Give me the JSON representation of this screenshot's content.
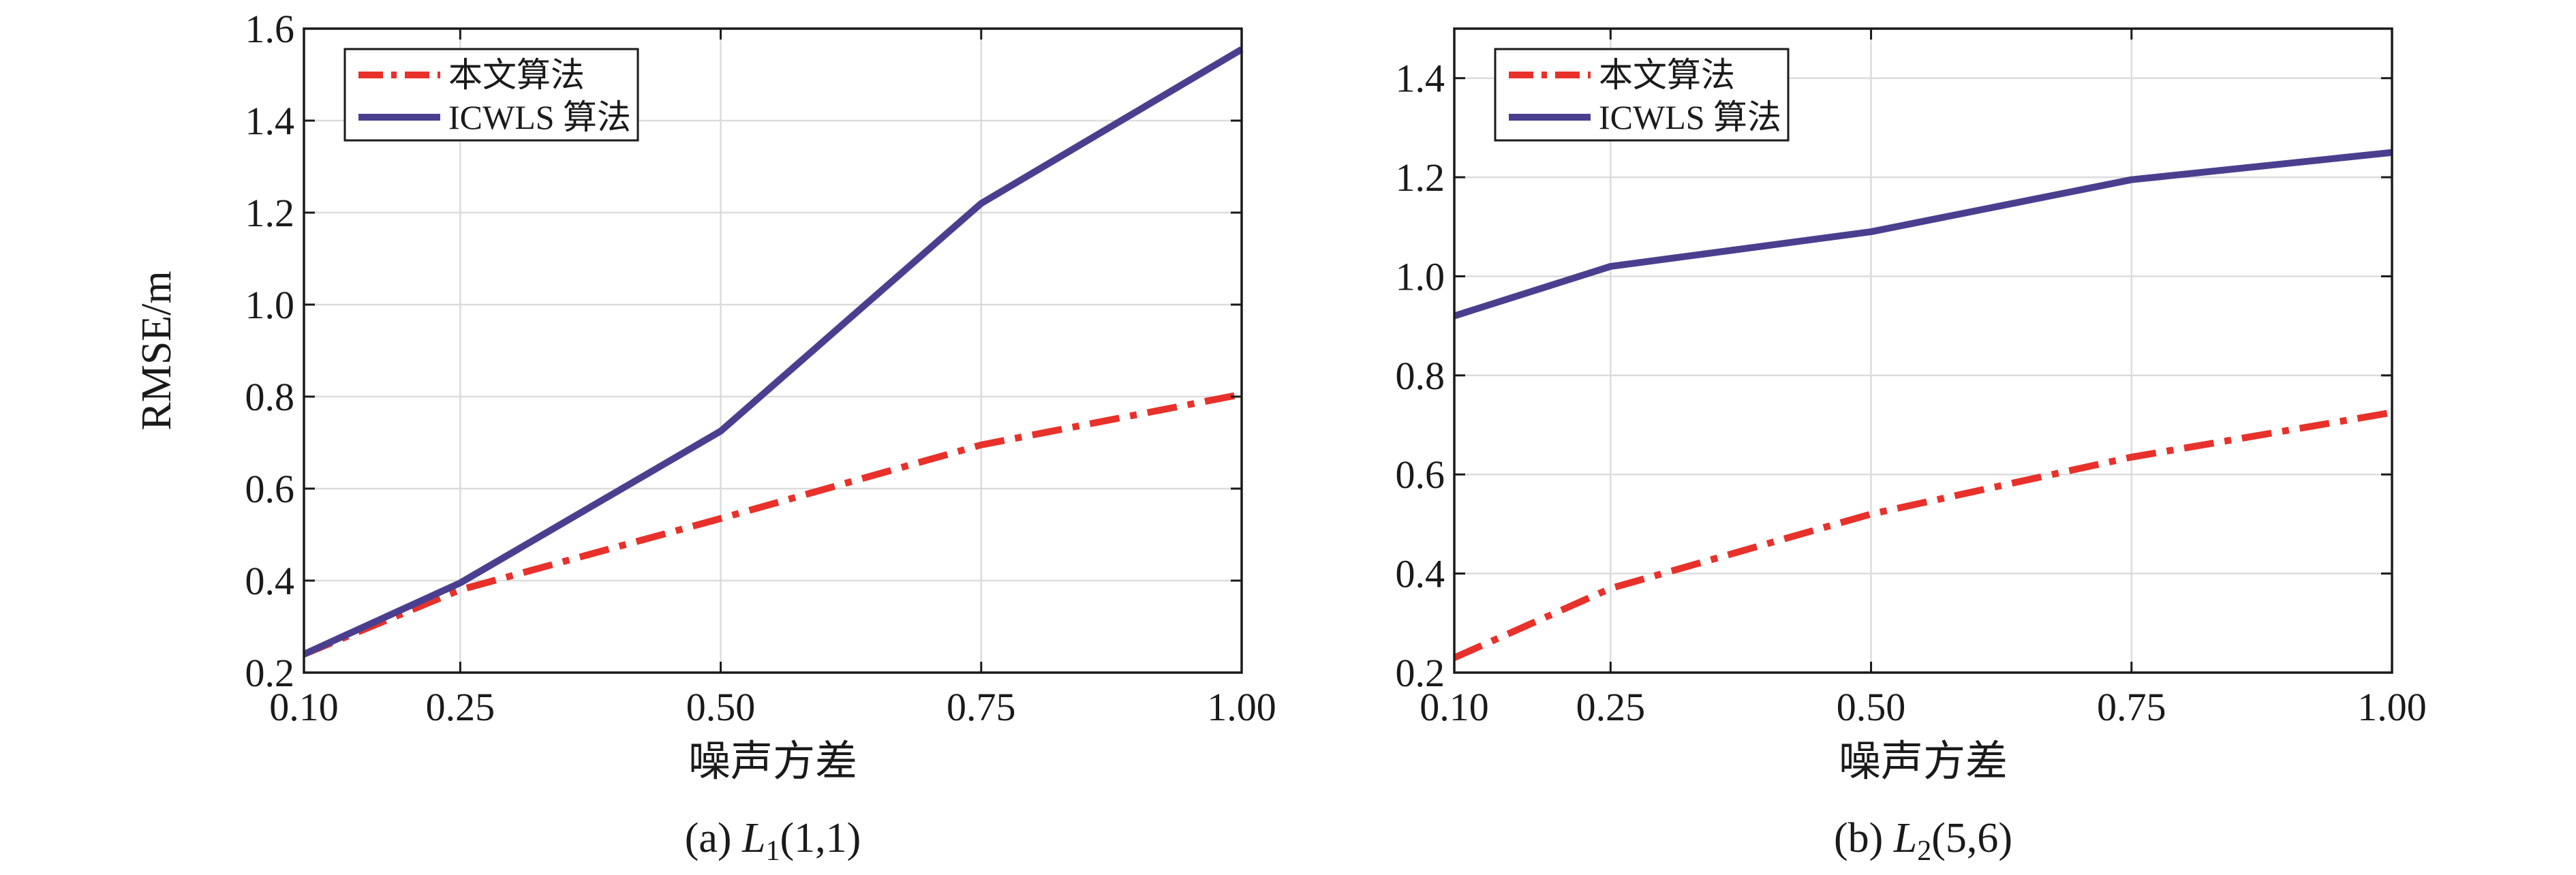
{
  "chart_data": [
    {
      "type": "line",
      "caption": {
        "prefix": "(a) ",
        "symbol": "L",
        "subscript": "1",
        "suffix": "(1,1)"
      },
      "xlabel": "噪声方差",
      "ylabel": "RMSE/m",
      "x": [
        0.1,
        0.25,
        0.5,
        0.75,
        1.0
      ],
      "x_tick_labels": [
        "0.10",
        "0.25",
        "0.50",
        "0.75",
        "1.00"
      ],
      "ylim": [
        0.2,
        1.6
      ],
      "y_ticks": [
        0.2,
        0.4,
        0.6,
        0.8,
        1.0,
        1.2,
        1.4,
        1.6
      ],
      "y_tick_labels": [
        "0.2",
        "0.4",
        "0.6",
        "0.8",
        "1.0",
        "1.2",
        "1.4",
        "1.6"
      ],
      "grid": true,
      "legend_position": "top-left",
      "series": [
        {
          "name": "本文算法",
          "color": "#e8312a",
          "style": "dash-dot",
          "values": [
            0.24,
            0.38,
            0.535,
            0.695,
            0.805
          ]
        },
        {
          "name": "ICWLS 算法",
          "color": "#4a3f8f",
          "style": "solid",
          "values": [
            0.24,
            0.395,
            0.725,
            1.22,
            1.555
          ]
        }
      ]
    },
    {
      "type": "line",
      "caption": {
        "prefix": "(b) ",
        "symbol": "L",
        "subscript": "2",
        "suffix": "(5,6)"
      },
      "xlabel": "噪声方差",
      "ylabel": "",
      "x": [
        0.1,
        0.25,
        0.5,
        0.75,
        1.0
      ],
      "x_tick_labels": [
        "0.10",
        "0.25",
        "0.50",
        "0.75",
        "1.00"
      ],
      "ylim": [
        0.2,
        1.5
      ],
      "y_ticks": [
        0.2,
        0.4,
        0.6,
        0.8,
        1.0,
        1.2,
        1.4
      ],
      "y_tick_labels": [
        "0.2",
        "0.4",
        "0.6",
        "0.8",
        "1.0",
        "1.2",
        "1.4"
      ],
      "grid": true,
      "legend_position": "top-left",
      "series": [
        {
          "name": "本文算法",
          "color": "#e8312a",
          "style": "dash-dot",
          "values": [
            0.23,
            0.37,
            0.52,
            0.635,
            0.725
          ]
        },
        {
          "name": "ICWLS 算法",
          "color": "#4a3f8f",
          "style": "solid",
          "values": [
            0.92,
            1.02,
            1.09,
            1.195,
            1.25
          ]
        }
      ]
    }
  ]
}
